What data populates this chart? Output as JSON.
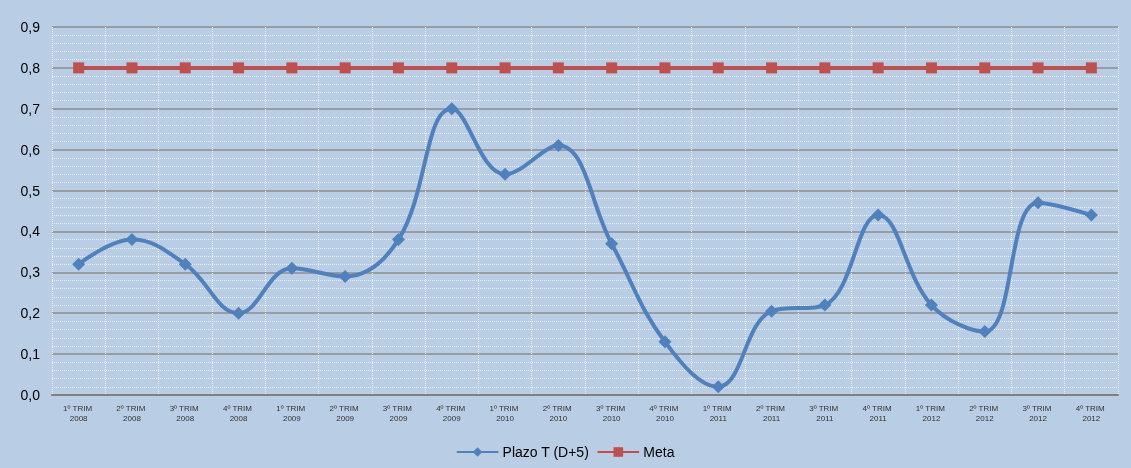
{
  "chart_data": {
    "type": "line",
    "categories": [
      "1º TRIM 2008",
      "2º TRIM 2008",
      "3º TRIM 2008",
      "4º TRIM 2008",
      "1º TRIM 2009",
      "2º TRIM 2009",
      "3º TRIM 2009",
      "4º TRIM 2009",
      "1º TRIM 2010",
      "2º TRIM 2010",
      "3º TRIM 2010",
      "4º TRIM 2010",
      "1º TRIM 2011",
      "2º TRIM 2011",
      "3º TRIM 2011",
      "4º TRIM 2011",
      "1º TRIM 2012",
      "2º TRIM 2012",
      "3º TRIM 2012",
      "4º TRIM 2012"
    ],
    "series": [
      {
        "name": "Plazo T (D+5)",
        "color": "#4f81bd",
        "marker": "diamond",
        "values": [
          0.32,
          0.38,
          0.32,
          0.2,
          0.31,
          0.29,
          0.38,
          0.7,
          0.54,
          0.61,
          0.37,
          0.13,
          0.02,
          0.205,
          0.22,
          0.44,
          0.22,
          0.155,
          0.47,
          0.44
        ]
      },
      {
        "name": "Meta",
        "color": "#c0504d",
        "marker": "square",
        "values": [
          0.8,
          0.8,
          0.8,
          0.8,
          0.8,
          0.8,
          0.8,
          0.8,
          0.8,
          0.8,
          0.8,
          0.8,
          0.8,
          0.8,
          0.8,
          0.8,
          0.8,
          0.8,
          0.8,
          0.8
        ]
      }
    ],
    "ylim": [
      0,
      0.9
    ],
    "yticks": [
      {
        "value": 0,
        "label": "0,0"
      },
      {
        "value": 0.1,
        "label": "0,1"
      },
      {
        "value": 0.2,
        "label": "0,2"
      },
      {
        "value": 0.3,
        "label": "0,3"
      },
      {
        "value": 0.4,
        "label": "0,4"
      },
      {
        "value": 0.5,
        "label": "0,5"
      },
      {
        "value": 0.6,
        "label": "0,6"
      },
      {
        "value": 0.7,
        "label": "0,7"
      },
      {
        "value": 0.8,
        "label": "0,8"
      },
      {
        "value": 0.9,
        "label": "0,9"
      }
    ],
    "grid": true,
    "legend": "bottom",
    "line_style": "solid"
  }
}
